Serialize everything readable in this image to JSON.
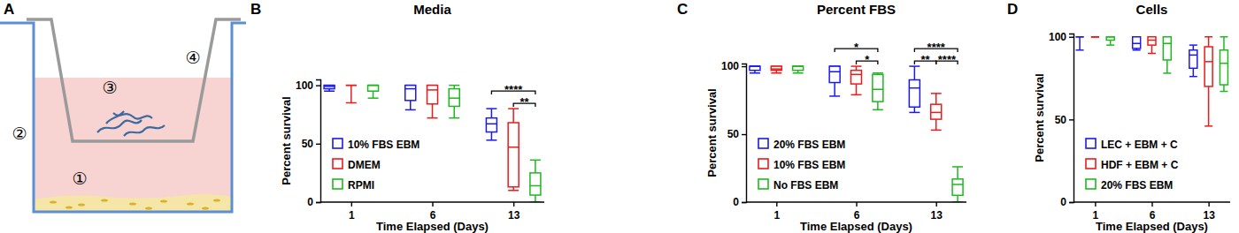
{
  "diagram": {
    "panel": "A",
    "labels": [
      "①",
      "②",
      "③",
      "④"
    ]
  },
  "chart_data": [
    {
      "type": "box",
      "panel": "B",
      "title": "Media",
      "x_label": "Time Elapsed (Days)",
      "y_label": "Percent survival",
      "categories": [
        "1",
        "6",
        "13"
      ],
      "ylim": [
        0,
        105
      ],
      "yticks": [
        0,
        50,
        100
      ],
      "grid": false,
      "legend": "lower left",
      "series": [
        {
          "name": "10% FBS EBM",
          "color": "#1a1aee",
          "min": [
            95,
            79,
            53
          ],
          "q1": [
            97,
            87,
            60
          ],
          "median": [
            99,
            97,
            67
          ],
          "q3": [
            100,
            100,
            72
          ],
          "max": [
            100,
            100,
            80
          ]
        },
        {
          "name": "DMEM",
          "color": "#ee1a1a",
          "min": [
            85,
            72,
            10
          ],
          "q1": [
            100,
            84,
            13
          ],
          "median": [
            100,
            96,
            47
          ],
          "q3": [
            100,
            100,
            68
          ],
          "max": [
            100,
            100,
            80
          ]
        },
        {
          "name": "RPMI",
          "color": "#1fb81f",
          "min": [
            89,
            72,
            0
          ],
          "q1": [
            95,
            82,
            6
          ],
          "median": [
            100,
            89,
            14
          ],
          "q3": [
            100,
            97,
            25
          ],
          "max": [
            100,
            100,
            36
          ]
        }
      ],
      "annotations": [
        {
          "category": "13",
          "text": "****",
          "between": [
            "10% FBS EBM",
            "RPMI"
          ]
        },
        {
          "category": "13",
          "text": "**",
          "between": [
            "DMEM",
            "RPMI"
          ]
        }
      ]
    },
    {
      "type": "box",
      "panel": "C",
      "title": "Percent FBS",
      "x_label": "Time Elapsed (Days)",
      "y_label": "Percent survival",
      "categories": [
        "1",
        "6",
        "13"
      ],
      "ylim": [
        0,
        102
      ],
      "yticks": [
        0,
        50,
        100
      ],
      "grid": false,
      "legend": "lower left",
      "series": [
        {
          "name": "20% FBS EBM",
          "color": "#1a1aee",
          "min": [
            95,
            78,
            66
          ],
          "q1": [
            97,
            88,
            70
          ],
          "median": [
            100,
            96,
            84
          ],
          "q3": [
            100,
            100,
            90
          ],
          "max": [
            100,
            100,
            100
          ]
        },
        {
          "name": "10% FBS EBM",
          "color": "#ee1a1a",
          "min": [
            95,
            79,
            53
          ],
          "q1": [
            97,
            87,
            61
          ],
          "median": [
            98,
            94,
            66
          ],
          "q3": [
            100,
            97,
            72
          ],
          "max": [
            100,
            100,
            80
          ]
        },
        {
          "name": "No FBS EBM",
          "color": "#1fb81f",
          "min": [
            95,
            68,
            0
          ],
          "q1": [
            97,
            74,
            5
          ],
          "median": [
            100,
            83,
            13
          ],
          "q3": [
            100,
            94,
            17
          ],
          "max": [
            100,
            95,
            26
          ]
        }
      ],
      "annotations": [
        {
          "category": "6",
          "text": "*",
          "between": [
            "20% FBS EBM",
            "No FBS EBM"
          ]
        },
        {
          "category": "6",
          "text": "*",
          "between": [
            "10% FBS EBM",
            "No FBS EBM"
          ]
        },
        {
          "category": "13",
          "text": "****",
          "between": [
            "20% FBS EBM",
            "No FBS EBM"
          ]
        },
        {
          "category": "13",
          "text": "**",
          "between": [
            "20% FBS EBM",
            "10% FBS EBM"
          ]
        },
        {
          "category": "13",
          "text": "****",
          "between": [
            "10% FBS EBM",
            "No FBS EBM"
          ]
        }
      ]
    },
    {
      "type": "box",
      "panel": "D",
      "title": "Cells",
      "x_label": "Time Elapsed (Days)",
      "y_label": "Percent survival",
      "categories": [
        "1",
        "6",
        "13"
      ],
      "ylim": [
        0,
        102
      ],
      "yticks": [
        0,
        50,
        100
      ],
      "grid": false,
      "legend": "lower left",
      "series": [
        {
          "name": "LEC + EBM + C",
          "color": "#1a1aee",
          "min": [
            92,
            92,
            76
          ],
          "q1": [
            100,
            93,
            81
          ],
          "median": [
            100,
            96,
            89
          ],
          "q3": [
            100,
            100,
            92
          ],
          "max": [
            100,
            100,
            95
          ]
        },
        {
          "name": "HDF + EBM + C",
          "color": "#ee1a1a",
          "min": [
            100,
            90,
            46
          ],
          "q1": [
            100,
            95,
            70
          ],
          "median": [
            100,
            98,
            85
          ],
          "q3": [
            100,
            100,
            94
          ],
          "max": [
            100,
            100,
            100
          ]
        },
        {
          "name": "20% FBS EBM",
          "color": "#1fb81f",
          "min": [
            95,
            78,
            67
          ],
          "q1": [
            98,
            86,
            71
          ],
          "median": [
            100,
            96,
            84
          ],
          "q3": [
            100,
            100,
            92
          ],
          "max": [
            100,
            100,
            100
          ]
        }
      ],
      "annotations": []
    }
  ]
}
